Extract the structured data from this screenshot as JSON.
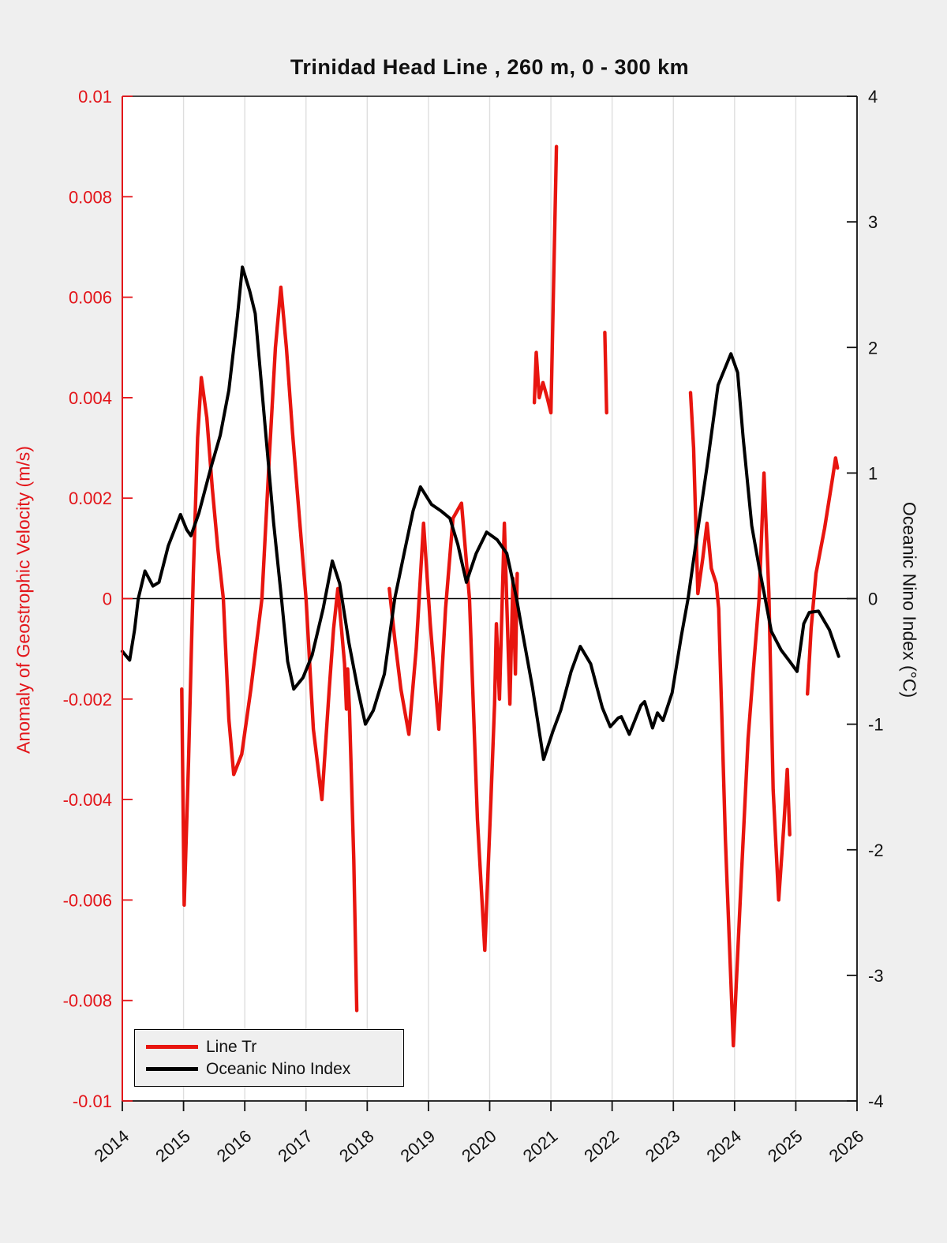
{
  "figure": {
    "background_color": "#efefef",
    "plot_background_color": "#ffffff",
    "grid_color": "#dedede"
  },
  "chart_data": {
    "type": "line",
    "title": "Trinidad Head Line , 260 m, 0 - 300 km",
    "grid": "vertical-only",
    "x_axis": {
      "range": [
        2014,
        2026
      ],
      "ticks": [
        2014,
        2015,
        2016,
        2017,
        2018,
        2019,
        2020,
        2021,
        2022,
        2023,
        2024,
        2025,
        2026
      ],
      "tick_labels": [
        "2014",
        "2015",
        "2016",
        "2017",
        "2018",
        "2019",
        "2020",
        "2021",
        "2022",
        "2023",
        "2024",
        "2025",
        "2026"
      ],
      "tick_rotation_deg": -40
    },
    "y_left": {
      "label": "Anomaly of Geostrophic Velocity (m/s)",
      "color": "#e31419",
      "range": [
        -0.01,
        0.01
      ],
      "ticks": [
        0.01,
        0.008,
        0.006,
        0.004,
        0.002,
        0,
        -0.002,
        -0.004,
        -0.006,
        -0.008,
        -0.01
      ],
      "tick_labels": [
        "0.01",
        "0.008",
        "0.006",
        "0.004",
        "0.002",
        "0",
        "-0.002",
        "-0.004",
        "-0.006",
        "-0.008",
        "-0.01"
      ]
    },
    "y_right": {
      "label": "Oceanic Nino Index (°C)",
      "color": "#111111",
      "range": [
        -4,
        4
      ],
      "ticks": [
        4,
        3,
        2,
        1,
        0,
        -1,
        -2,
        -3,
        -4
      ],
      "tick_labels": [
        "4",
        "3",
        "2",
        "1",
        "0",
        "-1",
        "-2",
        "-3",
        "-4"
      ]
    },
    "zero_line": {
      "value": 0,
      "color": "#000000"
    },
    "legend": {
      "position": "bottom-left",
      "items": [
        {
          "label": "Line Tr",
          "color": "#e8150f"
        },
        {
          "label": "Oceanic Nino Index",
          "color": "#000000"
        }
      ]
    },
    "series": [
      {
        "name": "Line Tr",
        "axis": "left",
        "color": "#e8150f",
        "line_width": 4.4,
        "segments": [
          [
            [
              2014.97,
              -0.0018
            ],
            [
              2015.01,
              -0.0061
            ],
            [
              2015.08,
              -0.0033
            ],
            [
              2015.16,
              0.0005
            ],
            [
              2015.23,
              0.0032
            ],
            [
              2015.29,
              0.0044
            ],
            [
              2015.38,
              0.0036
            ],
            [
              2015.47,
              0.0022
            ],
            [
              2015.56,
              0.001
            ],
            [
              2015.65,
              0.0
            ],
            [
              2015.74,
              -0.0024
            ],
            [
              2015.82,
              -0.0035
            ],
            [
              2015.95,
              -0.0031
            ],
            [
              2016.1,
              -0.0018
            ],
            [
              2016.28,
              0.0
            ],
            [
              2016.4,
              0.0028
            ],
            [
              2016.5,
              0.005
            ],
            [
              2016.59,
              0.0062
            ],
            [
              2016.68,
              0.005
            ],
            [
              2016.78,
              0.0033
            ],
            [
              2016.88,
              0.0018
            ],
            [
              2017.0,
              0.0
            ],
            [
              2017.12,
              -0.0026
            ],
            [
              2017.26,
              -0.004
            ],
            [
              2017.38,
              -0.0018
            ],
            [
              2017.45,
              -0.0006
            ],
            [
              2017.52,
              0.0002
            ],
            [
              2017.58,
              -0.0006
            ],
            [
              2017.63,
              -0.0013
            ],
            [
              2017.66,
              -0.0022
            ],
            [
              2017.68,
              -0.0014
            ],
            [
              2017.71,
              -0.0022
            ],
            [
              2017.78,
              -0.0052
            ],
            [
              2017.83,
              -0.0082
            ]
          ],
          [
            [
              2018.36,
              0.0002
            ],
            [
              2018.45,
              -0.0008
            ],
            [
              2018.55,
              -0.0018
            ],
            [
              2018.68,
              -0.0027
            ],
            [
              2018.8,
              -0.001
            ],
            [
              2018.92,
              0.0015
            ],
            [
              2019.03,
              -0.0005
            ],
            [
              2019.17,
              -0.0026
            ],
            [
              2019.28,
              -0.0002
            ],
            [
              2019.4,
              0.0016
            ],
            [
              2019.54,
              0.0019
            ],
            [
              2019.67,
              0.0
            ],
            [
              2019.8,
              -0.0044
            ],
            [
              2019.92,
              -0.007
            ],
            [
              2020.02,
              -0.004
            ],
            [
              2020.08,
              -0.0021
            ],
            [
              2020.11,
              -0.0005
            ],
            [
              2020.16,
              -0.002
            ],
            [
              2020.24,
              0.0015
            ],
            [
              2020.33,
              -0.0021
            ],
            [
              2020.38,
              0.0004
            ],
            [
              2020.42,
              -0.0015
            ],
            [
              2020.45,
              0.0005
            ]
          ],
          [
            [
              2020.73,
              0.0039
            ],
            [
              2020.76,
              0.0049
            ],
            [
              2020.81,
              0.004
            ],
            [
              2020.87,
              0.0043
            ],
            [
              2020.94,
              0.004
            ],
            [
              2021.0,
              0.0037
            ],
            [
              2021.09,
              0.009
            ]
          ],
          [
            [
              2021.88,
              0.0053
            ],
            [
              2021.91,
              0.0037
            ]
          ],
          [
            [
              2023.28,
              0.0041
            ],
            [
              2023.33,
              0.003
            ],
            [
              2023.4,
              0.0001
            ],
            [
              2023.48,
              0.0008
            ],
            [
              2023.55,
              0.0015
            ],
            [
              2023.62,
              0.0006
            ],
            [
              2023.7,
              0.0003
            ],
            [
              2023.74,
              -0.0002
            ],
            [
              2023.85,
              -0.0048
            ],
            [
              2023.98,
              -0.0089
            ],
            [
              2024.1,
              -0.0058
            ],
            [
              2024.22,
              -0.0028
            ],
            [
              2024.32,
              -0.0012
            ],
            [
              2024.4,
              0.0
            ],
            [
              2024.48,
              0.0025
            ],
            [
              2024.56,
              0.0001
            ],
            [
              2024.63,
              -0.0038
            ],
            [
              2024.72,
              -0.006
            ],
            [
              2024.8,
              -0.0046
            ],
            [
              2024.86,
              -0.0034
            ],
            [
              2024.9,
              -0.0047
            ]
          ],
          [
            [
              2025.19,
              -0.0019
            ],
            [
              2025.25,
              -0.0006
            ],
            [
              2025.33,
              0.0005
            ],
            [
              2025.47,
              0.0014
            ],
            [
              2025.6,
              0.0024
            ],
            [
              2025.65,
              0.0028
            ],
            [
              2025.68,
              0.0026
            ]
          ]
        ]
      },
      {
        "name": "Oceanic Nino Index",
        "axis": "right",
        "color": "#000000",
        "line_width": 4.0,
        "segments": [
          [
            [
              2014.0,
              -0.42
            ],
            [
              2014.12,
              -0.49
            ],
            [
              2014.2,
              -0.25
            ],
            [
              2014.26,
              0.0
            ],
            [
              2014.37,
              0.22
            ],
            [
              2014.5,
              0.1
            ],
            [
              2014.6,
              0.13
            ],
            [
              2014.75,
              0.42
            ],
            [
              2014.95,
              0.67
            ],
            [
              2015.05,
              0.55
            ],
            [
              2015.12,
              0.5
            ],
            [
              2015.25,
              0.68
            ],
            [
              2015.44,
              1.03
            ],
            [
              2015.6,
              1.3
            ],
            [
              2015.74,
              1.66
            ],
            [
              2015.88,
              2.25
            ],
            [
              2015.96,
              2.64
            ],
            [
              2016.08,
              2.45
            ],
            [
              2016.17,
              2.27
            ],
            [
              2016.32,
              1.44
            ],
            [
              2016.47,
              0.61
            ],
            [
              2016.6,
              0.0
            ],
            [
              2016.7,
              -0.5
            ],
            [
              2016.8,
              -0.72
            ],
            [
              2016.95,
              -0.63
            ],
            [
              2017.1,
              -0.45
            ],
            [
              2017.28,
              -0.08
            ],
            [
              2017.43,
              0.3
            ],
            [
              2017.55,
              0.12
            ],
            [
              2017.7,
              -0.35
            ],
            [
              2017.85,
              -0.73
            ],
            [
              2017.97,
              -1.0
            ],
            [
              2018.1,
              -0.89
            ],
            [
              2018.28,
              -0.6
            ],
            [
              2018.45,
              0.0
            ],
            [
              2018.62,
              0.4
            ],
            [
              2018.75,
              0.7
            ],
            [
              2018.87,
              0.89
            ],
            [
              2019.05,
              0.75
            ],
            [
              2019.2,
              0.7
            ],
            [
              2019.35,
              0.64
            ],
            [
              2019.48,
              0.43
            ],
            [
              2019.62,
              0.13
            ],
            [
              2019.78,
              0.36
            ],
            [
              2019.95,
              0.53
            ],
            [
              2020.12,
              0.47
            ],
            [
              2020.28,
              0.36
            ],
            [
              2020.44,
              0.0
            ],
            [
              2020.54,
              -0.28
            ],
            [
              2020.7,
              -0.71
            ],
            [
              2020.88,
              -1.28
            ],
            [
              2021.03,
              -1.06
            ],
            [
              2021.16,
              -0.89
            ],
            [
              2021.33,
              -0.58
            ],
            [
              2021.48,
              -0.38
            ],
            [
              2021.65,
              -0.52
            ],
            [
              2021.84,
              -0.87
            ],
            [
              2021.97,
              -1.02
            ],
            [
              2022.1,
              -0.95
            ],
            [
              2022.15,
              -0.94
            ],
            [
              2022.28,
              -1.08
            ],
            [
              2022.47,
              -0.85
            ],
            [
              2022.53,
              -0.82
            ],
            [
              2022.66,
              -1.03
            ],
            [
              2022.74,
              -0.91
            ],
            [
              2022.83,
              -0.97
            ],
            [
              2022.98,
              -0.75
            ],
            [
              2023.13,
              -0.3
            ],
            [
              2023.24,
              0.0
            ],
            [
              2023.4,
              0.55
            ],
            [
              2023.55,
              1.05
            ],
            [
              2023.73,
              1.7
            ],
            [
              2023.94,
              1.95
            ],
            [
              2024.05,
              1.8
            ],
            [
              2024.14,
              1.28
            ],
            [
              2024.28,
              0.58
            ],
            [
              2024.4,
              0.25
            ],
            [
              2024.5,
              0.0
            ],
            [
              2024.6,
              -0.26
            ],
            [
              2024.76,
              -0.41
            ],
            [
              2024.9,
              -0.5
            ],
            [
              2025.02,
              -0.58
            ],
            [
              2025.13,
              -0.2
            ],
            [
              2025.22,
              -0.11
            ],
            [
              2025.37,
              -0.1
            ],
            [
              2025.55,
              -0.25
            ],
            [
              2025.7,
              -0.46
            ]
          ]
        ]
      }
    ]
  }
}
